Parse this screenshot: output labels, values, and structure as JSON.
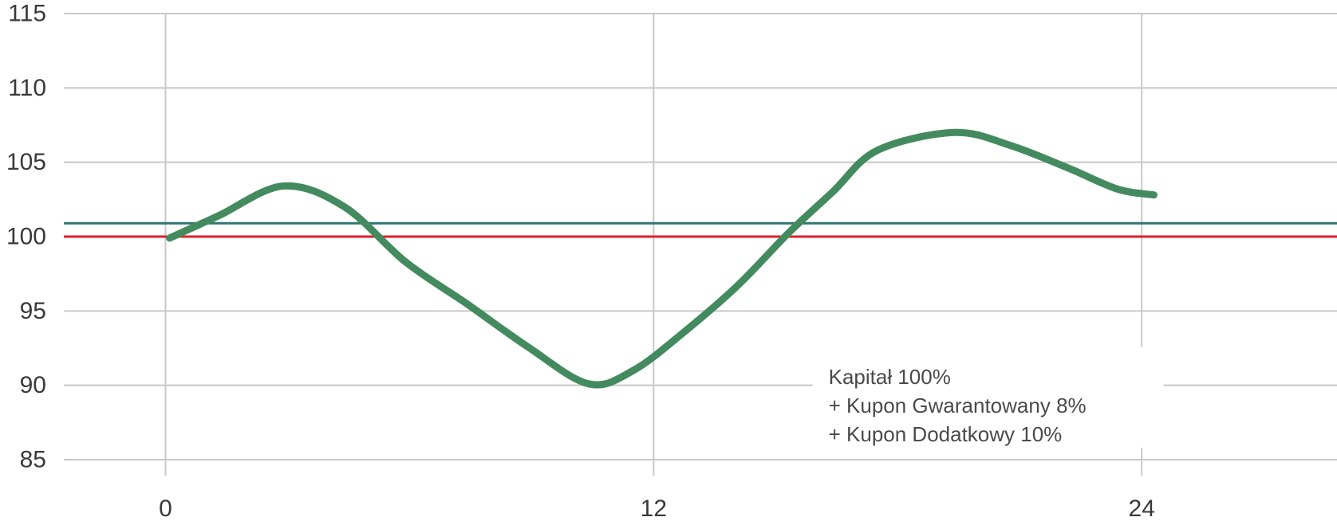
{
  "colors": {
    "grid": "#c8c8c8",
    "series": "#438b5e",
    "reference_red": "#e01e2b",
    "reference_teal": "#2f7571",
    "text": "#3a3a3a",
    "background": "#ffffff"
  },
  "chart_data": {
    "type": "line",
    "title": "",
    "xlabel": "",
    "ylabel": "",
    "xlim": [
      -2.5,
      28.8
    ],
    "ylim": [
      85,
      115
    ],
    "x_ticks": [
      0,
      12,
      24
    ],
    "x_tick_labels": [
      "0",
      "12",
      "24"
    ],
    "y_ticks": [
      85,
      90,
      95,
      100,
      105,
      110,
      115
    ],
    "y_tick_labels": [
      "85",
      "90",
      "95",
      "100",
      "105",
      "110",
      "115"
    ],
    "grid": true,
    "legend": "none",
    "series": [
      {
        "x": [
          0.1,
          1.3,
          2.9,
          4.4,
          5.9,
          7.4,
          8.9,
          10.4,
          11.5,
          12.8,
          14.1,
          15.3,
          16.4,
          17.5,
          19.4,
          20.8,
          22.2,
          23.4,
          24.3
        ],
        "y": [
          99.9,
          101.4,
          103.4,
          102.0,
          98.3,
          95.5,
          92.6,
          90.1,
          91.0,
          93.7,
          96.8,
          100.2,
          103.0,
          105.8,
          107.0,
          106.1,
          104.6,
          103.2,
          102.8
        ]
      }
    ],
    "reference_lines": [
      {
        "y": 100.0,
        "color": "#e01e2b"
      },
      {
        "y": 100.9,
        "color": "#2f7571"
      }
    ],
    "annotation": {
      "x": 16.3,
      "y_top": 91.6,
      "lines": [
        "Kapitał 100%",
        "+ Kupon Gwarantowany 8%",
        "+ Kupon Dodatkowy 10%"
      ]
    }
  }
}
